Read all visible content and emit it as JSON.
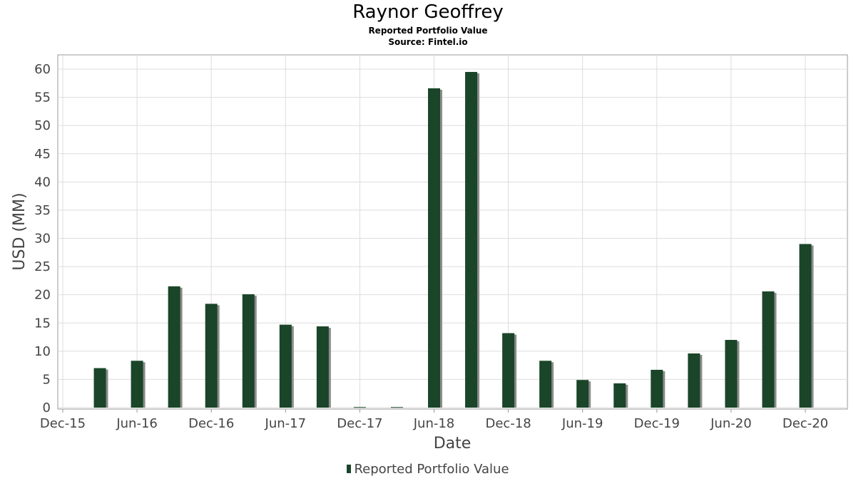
{
  "chart_data": {
    "type": "bar",
    "title": "Raynor Geoffrey",
    "subtitle": "Reported Portfolio Value",
    "source": "Source: Fintel.io",
    "xlabel": "Date",
    "ylabel": "USD (MM)",
    "ylim": [
      0,
      60
    ],
    "yticks": [
      0,
      5,
      10,
      15,
      20,
      25,
      30,
      35,
      40,
      45,
      50,
      55,
      60
    ],
    "xtick_labels": [
      "Dec-15",
      "Jun-16",
      "Dec-16",
      "Jun-17",
      "Dec-17",
      "Jun-18",
      "Dec-18",
      "Jun-19",
      "Dec-19",
      "Jun-20",
      "Dec-20"
    ],
    "grid": true,
    "legend": "bottom-center",
    "series": [
      {
        "name": "Reported Portfolio Value",
        "color": "#1a4528",
        "categories": [
          "Mar-16",
          "Jun-16",
          "Sep-16",
          "Dec-16",
          "Mar-17",
          "Jun-17",
          "Sep-17",
          "Dec-17",
          "Mar-18",
          "Jun-18",
          "Sep-18",
          "Dec-18",
          "Mar-19",
          "Jun-19",
          "Sep-19",
          "Dec-19",
          "Mar-20",
          "Jun-20",
          "Sep-20",
          "Dec-20"
        ],
        "values": [
          7.0,
          8.3,
          21.5,
          18.4,
          20.1,
          14.7,
          14.4,
          0.1,
          0.1,
          56.6,
          59.5,
          13.2,
          8.3,
          4.9,
          4.3,
          6.7,
          9.6,
          12.0,
          20.6,
          29.0
        ]
      }
    ]
  }
}
